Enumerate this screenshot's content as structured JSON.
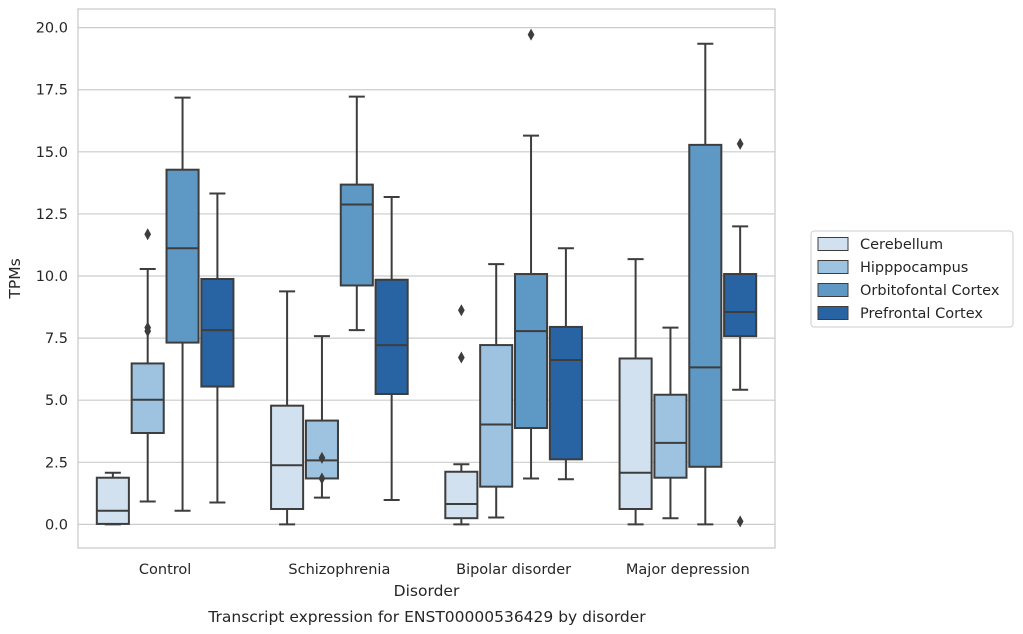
{
  "chart_data": {
    "type": "box",
    "caption": "Transcript expression for ENST00000536429 by disorder",
    "xlabel": "Disorder",
    "ylabel": "TPMs",
    "ylim": [
      -0.95,
      20.75
    ],
    "yticks": [
      "0.0",
      "2.5",
      "5.0",
      "7.5",
      "10.0",
      "12.5",
      "15.0",
      "17.5",
      "20.0"
    ],
    "categories": [
      "Control",
      "Schizophrenia",
      "Bipolar disorder",
      "Major depression"
    ],
    "grid": "horizontal",
    "legend_position": "right",
    "series": [
      {
        "name": "Cerebellum",
        "color": "#d1e1f0",
        "boxes": [
          {
            "whislo": 0.0,
            "q1": 0.02,
            "med": 0.55,
            "q3": 1.88,
            "whishi": 2.08,
            "fliers": []
          },
          {
            "whislo": 0.0,
            "q1": 0.62,
            "med": 2.38,
            "q3": 4.78,
            "whishi": 9.38,
            "fliers": []
          },
          {
            "whislo": 0.0,
            "q1": 0.25,
            "med": 0.82,
            "q3": 2.12,
            "whishi": 2.42,
            "fliers": [
              8.62,
              6.72
            ]
          },
          {
            "whislo": 0.0,
            "q1": 0.62,
            "med": 2.08,
            "q3": 6.68,
            "whishi": 10.68,
            "fliers": []
          }
        ]
      },
      {
        "name": "Hipppocampus",
        "color": "#9dc3e0",
        "boxes": [
          {
            "whislo": 0.92,
            "q1": 3.68,
            "med": 5.02,
            "q3": 6.48,
            "whishi": 10.28,
            "fliers": [
              11.68,
              7.92,
              7.78
            ]
          },
          {
            "whislo": 1.08,
            "q1": 1.85,
            "med": 2.58,
            "q3": 4.18,
            "whishi": 7.58,
            "fliers": [
              2.68,
              1.85
            ]
          },
          {
            "whislo": 0.28,
            "q1": 1.52,
            "med": 4.02,
            "q3": 7.22,
            "whishi": 10.48,
            "fliers": []
          },
          {
            "whislo": 0.25,
            "q1": 1.88,
            "med": 3.28,
            "q3": 5.22,
            "whishi": 7.92,
            "fliers": []
          }
        ]
      },
      {
        "name": "Orbitofontal Cortex",
        "color": "#5e98c5",
        "boxes": [
          {
            "whislo": 0.55,
            "q1": 7.32,
            "med": 11.12,
            "q3": 14.28,
            "whishi": 17.18,
            "fliers": []
          },
          {
            "whislo": 7.82,
            "q1": 9.62,
            "med": 12.88,
            "q3": 13.68,
            "whishi": 17.22,
            "fliers": []
          },
          {
            "whislo": 1.85,
            "q1": 3.88,
            "med": 7.78,
            "q3": 10.08,
            "whishi": 15.65,
            "fliers": [
              19.72
            ]
          },
          {
            "whislo": 0.0,
            "q1": 2.32,
            "med": 6.32,
            "q3": 15.28,
            "whishi": 19.35,
            "fliers": []
          }
        ]
      },
      {
        "name": "Prefrontal Cortex",
        "color": "#2864a3",
        "boxes": [
          {
            "whislo": 0.88,
            "q1": 5.55,
            "med": 7.82,
            "q3": 9.88,
            "whishi": 13.32,
            "fliers": []
          },
          {
            "whislo": 0.98,
            "q1": 5.25,
            "med": 7.22,
            "q3": 9.85,
            "whishi": 13.18,
            "fliers": []
          },
          {
            "whislo": 1.82,
            "q1": 2.62,
            "med": 6.62,
            "q3": 7.95,
            "whishi": 11.12,
            "fliers": []
          },
          {
            "whislo": 5.42,
            "q1": 7.58,
            "med": 8.55,
            "q3": 10.08,
            "whishi": 12.0,
            "fliers": [
              15.32,
              0.12
            ]
          }
        ]
      }
    ]
  },
  "legend": {
    "entries": [
      "Cerebellum",
      "Hipppocampus",
      "Orbitofontal Cortex",
      "Prefrontal Cortex"
    ]
  }
}
